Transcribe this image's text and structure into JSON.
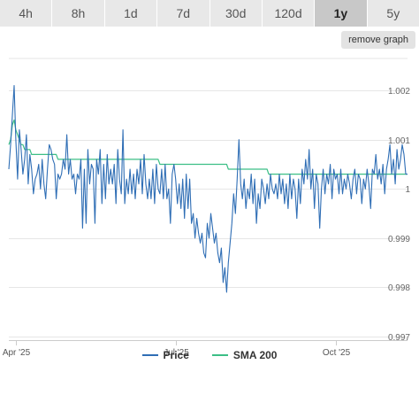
{
  "tabs": [
    {
      "label": "4h",
      "active": false
    },
    {
      "label": "8h",
      "active": false
    },
    {
      "label": "1d",
      "active": false
    },
    {
      "label": "7d",
      "active": false
    },
    {
      "label": "30d",
      "active": false
    },
    {
      "label": "120d",
      "active": false
    },
    {
      "label": "1y",
      "active": true
    },
    {
      "label": "5y",
      "active": false
    }
  ],
  "remove_graph_label": "remove graph",
  "colors": {
    "price": "#2f6eb5",
    "sma": "#3cbf86",
    "grid": "#e6e6e6",
    "tab_bg": "#e8e8e8",
    "tab_active_bg": "#c8c8c8"
  },
  "chart_data": {
    "type": "line",
    "y_ticks": [
      "0.997",
      "0.998",
      "0.999",
      "1",
      "1.001",
      "1.002"
    ],
    "y_tick_values": [
      0.997,
      0.998,
      0.999,
      1.0,
      1.001,
      1.002
    ],
    "ylim": [
      0.997,
      1.00265
    ],
    "x_ticks": [
      "Apr '25",
      "Jul '25",
      "Oct '25"
    ],
    "x_tick_index": [
      4,
      95,
      186
    ],
    "n_points": 228,
    "legend": [
      "Price",
      "SMA 200"
    ],
    "series": [
      {
        "name": "Price",
        "values": [
          1.0004,
          1.0009,
          1.0015,
          1.0021,
          1.001,
          1.0002,
          1.0012,
          1.0008,
          1.0003,
          1.0006,
          1.0011,
          1.0001,
          1.0007,
          1.0004,
          0.9999,
          1.0002,
          1.0003,
          1.0005,
          1.0,
          1.0006,
          1.0001,
          0.9998,
          1.0004,
          1.0009,
          1.0008,
          1.0006,
          1.0005,
          0.9998,
          1.0003,
          1.0002,
          1.0003,
          1.0006,
          1.0004,
          1.0011,
          1.0003,
          1.0006,
          1.0002,
          1.0003,
          0.9999,
          1.0003,
          1.0002,
          1.0006,
          0.9992,
          1.0004,
          0.9993,
          1.0008,
          1.0001,
          1.0005,
          1.0004,
          0.9993,
          1.0006,
          1.0003,
          1.0008,
          0.9997,
          1.0005,
          0.9998,
          1.0007,
          1.0001,
          1.0004,
          1.0001,
          1.0005,
          0.9997,
          1.0008,
          1.0002,
          0.9999,
          1.0012,
          0.9997,
          1.0002,
          0.9999,
          1.0004,
          0.9999,
          1.0003,
          0.9998,
          1.0004,
          1.0001,
          1.0006,
          0.9999,
          1.0007,
          1.0001,
          0.9998,
          1.0002,
          0.9998,
          1.0004,
          0.9997,
          1.0005,
          1.0,
          0.9999,
          1.0004,
          0.9998,
          1.0005,
          0.9998,
          1.0,
          0.9993,
          1.0003,
          1.0005,
          1.0002,
          0.9997,
          1.0001,
          0.9996,
          1.0002,
          0.9994,
          1.0003,
          0.9996,
          1.0002,
          0.9993,
          0.9995,
          0.999,
          0.9994,
          0.9991,
          0.9989,
          0.9991,
          0.9987,
          0.9986,
          0.9993,
          0.999,
          0.9995,
          0.9992,
          0.9989,
          0.9991,
          0.9987,
          0.9985,
          0.9988,
          0.9981,
          0.9984,
          0.9979,
          0.9985,
          0.9989,
          0.9993,
          0.9999,
          0.9995,
          1.0002,
          1.001,
          1.0001,
          0.9998,
          1.0002,
          0.9996,
          1.0,
          0.9998,
          1.0003,
          0.9997,
          1.0002,
          0.9993,
          0.9999,
          0.9996,
          1.0002,
          1.0,
          0.9997,
          1.0001,
          0.9998,
          1.0003,
          1.0,
          0.9999,
          1.0001,
          0.9998,
          1.0003,
          0.9999,
          1.0002,
          0.9997,
          1.0001,
          0.9996,
          1.0003,
          0.9998,
          1.0002,
          1.0,
          0.9994,
          1.0002,
          0.9997,
          1.0004,
          1.0001,
          1.0006,
          1.0002,
          1.0008,
          1.0,
          1.0004,
          0.9996,
          1.0003,
          1.0001,
          0.9992,
          1.0,
          1.0004,
          0.9999,
          1.0003,
          1.0001,
          1.0005,
          0.9998,
          1.0004,
          1.0002,
          1.0003,
          0.9999,
          1.0004,
          0.9999,
          1.0002,
          1.0,
          1.0003,
          1.0001,
          0.9998,
          1.0002,
          1.0004,
          0.9999,
          1.0003,
          1.0002,
          0.9997,
          1.0002,
          1.0,
          1.0004,
          1.0001,
          0.9996,
          1.0004,
          1.0003,
          1.0007,
          1.0002,
          1.0004,
          1.0001,
          1.0005,
          0.9999,
          1.0004,
          1.0006,
          1.0009,
          1.0003,
          1.0006,
          1.0001,
          1.0008,
          1.0004,
          1.0006,
          1.0009,
          1.0007,
          1.0003,
          1.0003
        ]
      },
      {
        "name": "SMA 200",
        "values": [
          1.0009,
          1.001,
          1.0013,
          1.0014,
          1.0012,
          1.0011,
          1.001,
          1.0009,
          1.0009,
          1.0008,
          1.0008,
          1.0008,
          1.0008,
          1.0007,
          1.0007,
          1.0007,
          1.0007,
          1.0007,
          1.0007,
          1.0007,
          1.0007,
          1.0007,
          1.0007,
          1.0007,
          1.0007,
          1.0007,
          1.0007,
          1.0007,
          1.0006,
          1.0006,
          1.0006,
          1.0006,
          1.0006,
          1.0006,
          1.0006,
          1.0006,
          1.0006,
          1.0006,
          1.0006,
          1.0006,
          1.0006,
          1.0006,
          1.0006,
          1.0006,
          1.0006,
          1.0006,
          1.0006,
          1.0006,
          1.0006,
          1.0006,
          1.0006,
          1.0006,
          1.0006,
          1.0006,
          1.0006,
          1.0006,
          1.0006,
          1.0006,
          1.0006,
          1.0006,
          1.0006,
          1.0006,
          1.0006,
          1.0006,
          1.0006,
          1.0006,
          1.0006,
          1.0006,
          1.0006,
          1.0006,
          1.0006,
          1.0006,
          1.0006,
          1.0006,
          1.0006,
          1.0006,
          1.0006,
          1.0006,
          1.0006,
          1.0006,
          1.0006,
          1.0006,
          1.0006,
          1.0006,
          1.0006,
          1.0006,
          1.0005,
          1.0005,
          1.0005,
          1.0005,
          1.0005,
          1.0005,
          1.0005,
          1.0005,
          1.0005,
          1.0005,
          1.0005,
          1.0005,
          1.0005,
          1.0005,
          1.0005,
          1.0005,
          1.0005,
          1.0005,
          1.0005,
          1.0005,
          1.0005,
          1.0005,
          1.0005,
          1.0005,
          1.0005,
          1.0005,
          1.0005,
          1.0005,
          1.0005,
          1.0005,
          1.0005,
          1.0005,
          1.0005,
          1.0005,
          1.0005,
          1.0005,
          1.0005,
          1.0005,
          1.0005,
          1.0004,
          1.0004,
          1.0004,
          1.0004,
          1.0004,
          1.0004,
          1.0004,
          1.0004,
          1.0004,
          1.0004,
          1.0004,
          1.0004,
          1.0004,
          1.0004,
          1.0004,
          1.0004,
          1.0004,
          1.0004,
          1.0004,
          1.0004,
          1.0004,
          1.0004,
          1.0004,
          1.0003,
          1.0003,
          1.0003,
          1.0003,
          1.0003,
          1.0003,
          1.0003,
          1.0003,
          1.0003,
          1.0003,
          1.0003,
          1.0003,
          1.0003,
          1.0003,
          1.0003,
          1.0003,
          1.0003,
          1.0003,
          1.0003,
          1.0003,
          1.0003,
          1.0003,
          1.0003,
          1.0003,
          1.0003,
          1.0003,
          1.0003,
          1.0003,
          1.0003,
          1.0003,
          1.0003,
          1.0003,
          1.0003,
          1.0003,
          1.0003,
          1.0003,
          1.0003,
          1.0003,
          1.0003,
          1.0003,
          1.0003,
          1.0003,
          1.0003,
          1.0003,
          1.0003,
          1.0003,
          1.0003,
          1.0003,
          1.0003,
          1.0003,
          1.0003,
          1.0003,
          1.0003,
          1.0003,
          1.0003,
          1.0003,
          1.0003,
          1.0003,
          1.0003,
          1.0003,
          1.0003,
          1.0003,
          1.0003,
          1.0003,
          1.0003,
          1.0003,
          1.0003,
          1.0003,
          1.0003,
          1.0003,
          1.0003,
          1.0003,
          1.0003,
          1.0003,
          1.0003,
          1.0003,
          1.0003,
          1.0003,
          1.0003,
          1.0003
        ]
      }
    ]
  }
}
